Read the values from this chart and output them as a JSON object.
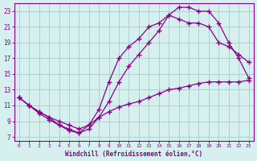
{
  "xlabel": "Windchill (Refroidissement éolien,°C)",
  "xlim": [
    -0.5,
    23.5
  ],
  "ylim": [
    6.5,
    24
  ],
  "yticks": [
    7,
    9,
    11,
    13,
    15,
    17,
    19,
    21,
    23
  ],
  "xticks": [
    0,
    1,
    2,
    3,
    4,
    5,
    6,
    7,
    8,
    9,
    10,
    11,
    12,
    13,
    14,
    15,
    16,
    17,
    18,
    19,
    20,
    21,
    22,
    23
  ],
  "bg_color": "#d6f0f0",
  "line_color": "#880088",
  "grid_color": "#aacccc",
  "line1_x": [
    0,
    1,
    2,
    3,
    4,
    5,
    6,
    7,
    8,
    9,
    10,
    11,
    12,
    13,
    14,
    15,
    16,
    17,
    18,
    19,
    20,
    21,
    22,
    23
  ],
  "line1_y": [
    12.0,
    11.0,
    10.0,
    9.2,
    8.5,
    8.0,
    7.5,
    8.0,
    9.5,
    11.5,
    14.0,
    16.0,
    17.5,
    19.0,
    20.5,
    22.5,
    23.5,
    23.5,
    23.0,
    23.0,
    21.5,
    19.0,
    17.0,
    14.5
  ],
  "line2_x": [
    0,
    1,
    2,
    3,
    4,
    5,
    6,
    7,
    8,
    9,
    10,
    11,
    12,
    13,
    14,
    15,
    16,
    17,
    18,
    19,
    20,
    21,
    22,
    23
  ],
  "line2_y": [
    12.0,
    11.0,
    10.2,
    9.5,
    8.5,
    7.8,
    7.5,
    8.5,
    10.5,
    14.0,
    17.0,
    18.5,
    19.5,
    21.0,
    21.5,
    22.5,
    22.0,
    21.5,
    21.5,
    21.0,
    19.0,
    18.5,
    17.5,
    16.5
  ],
  "line3_x": [
    0,
    1,
    2,
    3,
    4,
    5,
    6,
    7,
    8,
    9,
    10,
    11,
    12,
    13,
    14,
    15,
    16,
    17,
    18,
    19,
    20,
    21,
    22,
    23
  ],
  "line3_y": [
    12.0,
    11.0,
    10.2,
    9.5,
    9.0,
    8.5,
    8.0,
    8.5,
    9.5,
    10.2,
    10.8,
    11.2,
    11.5,
    12.0,
    12.5,
    13.0,
    13.2,
    13.5,
    13.8,
    14.0,
    14.0,
    14.0,
    14.0,
    14.2
  ]
}
